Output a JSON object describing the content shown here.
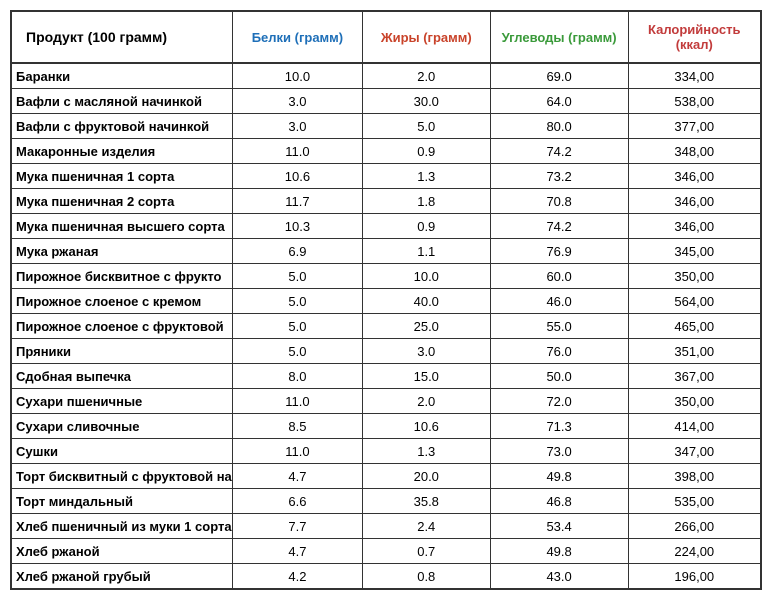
{
  "table": {
    "header_colors": {
      "product": "#000000",
      "protein": "#1e6fb8",
      "fat": "#c9432a",
      "carbs": "#3a9a3a",
      "kcal": "#c23b3b"
    },
    "columns": [
      "Продукт (100 грамм)",
      "Белки (грамм)",
      "Жиры (грамм)",
      "Углеводы (грамм)",
      "Калорийность (ккал)"
    ],
    "rows": [
      [
        "Баранки",
        "10.0",
        "2.0",
        "69.0",
        "334,00"
      ],
      [
        "Вафли с масляной начинкой",
        "3.0",
        "30.0",
        "64.0",
        "538,00"
      ],
      [
        "Вафли с фруктовой начинкой",
        "3.0",
        "5.0",
        "80.0",
        "377,00"
      ],
      [
        "Макаронные изделия",
        "11.0",
        "0.9",
        "74.2",
        "348,00"
      ],
      [
        "Мука пшеничная 1 сорта",
        "10.6",
        "1.3",
        "73.2",
        "346,00"
      ],
      [
        "Мука пшеничная 2 сорта",
        "11.7",
        "1.8",
        "70.8",
        "346,00"
      ],
      [
        "Мука пшеничная высшего сорта",
        "10.3",
        "0.9",
        "74.2",
        "346,00"
      ],
      [
        "Мука ржаная",
        "6.9",
        "1.1",
        "76.9",
        "345,00"
      ],
      [
        "Пирожное бисквитное с фрукто",
        "5.0",
        "10.0",
        "60.0",
        "350,00"
      ],
      [
        "Пирожное слоеное с кремом",
        "5.0",
        "40.0",
        "46.0",
        "564,00"
      ],
      [
        "Пирожное слоеное с фруктовой",
        "5.0",
        "25.0",
        "55.0",
        "465,00"
      ],
      [
        "Пряники",
        "5.0",
        "3.0",
        "76.0",
        "351,00"
      ],
      [
        "Сдобная выпечка",
        "8.0",
        "15.0",
        "50.0",
        "367,00"
      ],
      [
        "Сухари пшеничные",
        "11.0",
        "2.0",
        "72.0",
        "350,00"
      ],
      [
        "Сухари сливочные",
        "8.5",
        "10.6",
        "71.3",
        "414,00"
      ],
      [
        "Сушки",
        "11.0",
        "1.3",
        "73.0",
        "347,00"
      ],
      [
        "Торт бисквитный с фруктовой нач",
        "4.7",
        "20.0",
        "49.8",
        "398,00"
      ],
      [
        "Торт миндальный",
        "6.6",
        "35.8",
        "46.8",
        "535,00"
      ],
      [
        "Хлеб пшеничный из муки 1 сорта",
        "7.7",
        "2.4",
        "53.4",
        "266,00"
      ],
      [
        "Хлеб ржаной",
        "4.7",
        "0.7",
        "49.8",
        "224,00"
      ],
      [
        "Хлеб ржаной грубый",
        "4.2",
        "0.8",
        "43.0",
        "196,00"
      ]
    ]
  }
}
